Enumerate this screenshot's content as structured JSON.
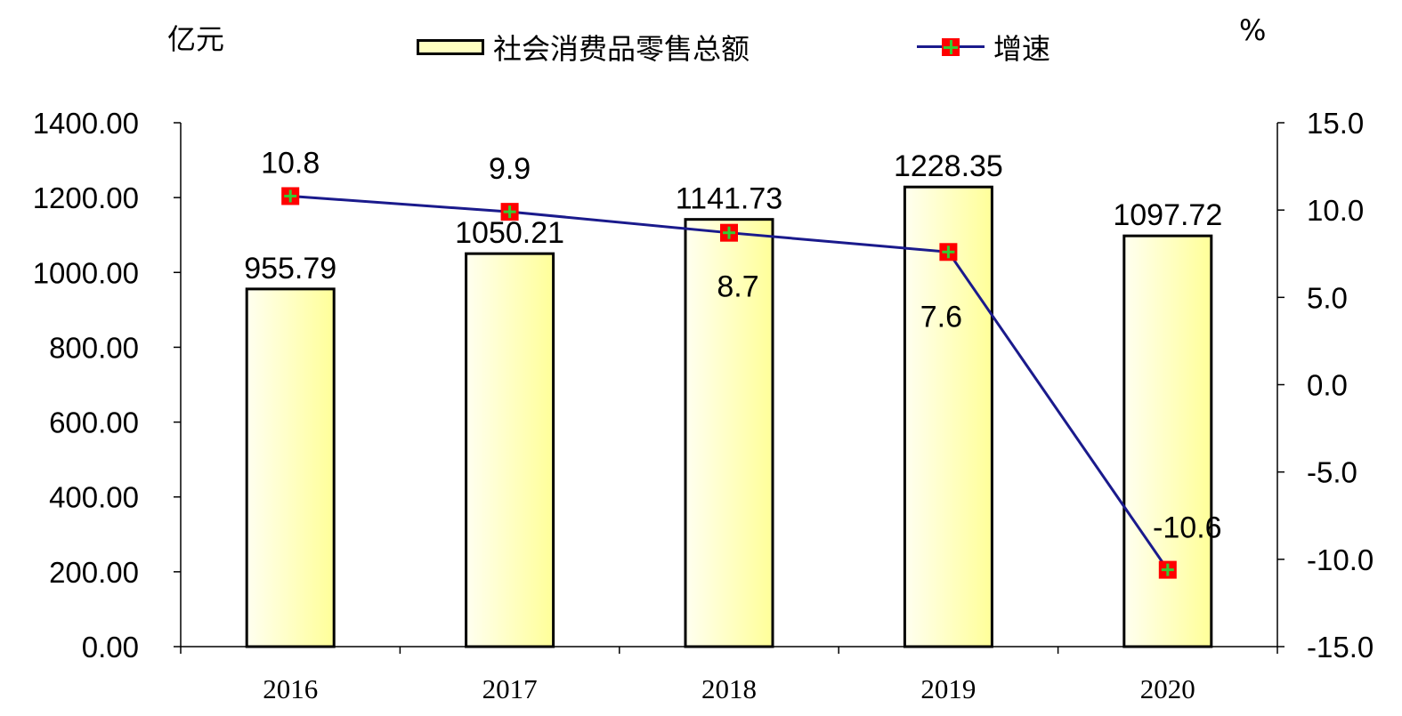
{
  "chart_data": {
    "type": "bar+line",
    "categories": [
      "2016",
      "2017",
      "2018",
      "2019",
      "2020"
    ],
    "series": [
      {
        "name": "社会消费品零售总额",
        "type": "bar",
        "axis": "left",
        "values": [
          955.79,
          1050.21,
          1141.73,
          1228.35,
          1097.72
        ],
        "labels": [
          "955.79",
          "1050.21",
          "1141.73",
          "1228.35",
          "1097.72"
        ]
      },
      {
        "name": "增速",
        "type": "line",
        "axis": "right",
        "values": [
          10.8,
          9.9,
          8.7,
          7.6,
          -10.6
        ],
        "labels": [
          "10.8",
          "9.9",
          "8.7",
          "7.6",
          "-10.6"
        ]
      }
    ],
    "y_left": {
      "unit": "亿元",
      "range": [
        0,
        1400
      ],
      "ticks": [
        0,
        200,
        400,
        600,
        800,
        1000,
        1200,
        1400
      ],
      "tick_labels": [
        "0.00",
        "200.00",
        "400.00",
        "600.00",
        "800.00",
        "1000.00",
        "1200.00",
        "1400.00"
      ]
    },
    "y_right": {
      "unit": "%",
      "range": [
        -15,
        15
      ],
      "ticks": [
        -15,
        -10,
        -5,
        0,
        5,
        10,
        15
      ],
      "tick_labels": [
        "-15.0",
        "-10.0",
        "-5.0",
        "0.0",
        "5.0",
        "10.0",
        "15.0"
      ]
    },
    "legend": {
      "placement": "top-center",
      "bar_label": "社会消费品零售总额",
      "line_label": "增速"
    },
    "grid": false,
    "colors": {
      "bar_fill": "#ffffc0",
      "bar_edge": "#000000",
      "line": "#1a1a8c",
      "marker": "#ff0000",
      "marker_cross": "#33cc33"
    }
  }
}
